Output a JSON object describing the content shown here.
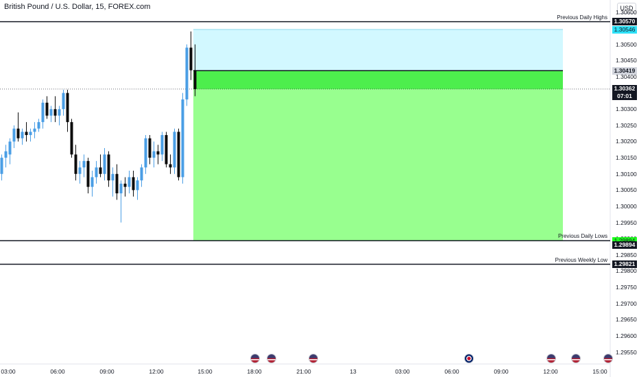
{
  "header": {
    "title": "British Pound / U.S. Dollar, 15, FOREX.com",
    "currency": "USD"
  },
  "chart_data": {
    "type": "candlestick",
    "title": "British Pound / U.S. Dollar, 15, FOREX.com",
    "ylim": [
      1.295,
      1.3065
    ],
    "y_ticks": [
      "1.30600",
      "1.30550",
      "1.30500",
      "1.30450",
      "1.30400",
      "1.30350",
      "1.30300",
      "1.30250",
      "1.30200",
      "1.30150",
      "1.30100",
      "1.30050",
      "1.30000",
      "1.29950",
      "1.29900",
      "1.29850",
      "1.29800",
      "1.29750",
      "1.29700",
      "1.29650",
      "1.29600",
      "1.29550"
    ],
    "x_ticks": [
      "03:00",
      "06:00",
      "09:00",
      "12:00",
      "15:00",
      "18:00",
      "21:00",
      "13",
      "03:00",
      "06:00",
      "09:00",
      "12:00",
      "15:00"
    ],
    "candles": [
      [
        1.301,
        1.3016,
        1.3008,
        1.3015
      ],
      [
        1.3015,
        1.3019,
        1.3012,
        1.3017
      ],
      [
        1.3016,
        1.3021,
        1.3013,
        1.302
      ],
      [
        1.302,
        1.3025,
        1.3018,
        1.3024
      ],
      [
        1.3024,
        1.3029,
        1.302,
        1.3021
      ],
      [
        1.3021,
        1.3024,
        1.3019,
        1.3023
      ],
      [
        1.3023,
        1.3026,
        1.302,
        1.3022
      ],
      [
        1.3022,
        1.3024,
        1.302,
        1.3023
      ],
      [
        1.3023,
        1.3026,
        1.3021,
        1.3024
      ],
      [
        1.3024,
        1.3027,
        1.3023,
        1.3026
      ],
      [
        1.3026,
        1.3033,
        1.3024,
        1.3032
      ],
      [
        1.3032,
        1.3034,
        1.3027,
        1.3028
      ],
      [
        1.3028,
        1.3031,
        1.3026,
        1.303
      ],
      [
        1.303,
        1.3034,
        1.3026,
        1.3028
      ],
      [
        1.3028,
        1.3031,
        1.3025,
        1.303
      ],
      [
        1.303,
        1.3036,
        1.3028,
        1.3035
      ],
      [
        1.3035,
        1.3036,
        1.3023,
        1.3026
      ],
      [
        1.3026,
        1.3027,
        1.3015,
        1.3016
      ],
      [
        1.3016,
        1.3019,
        1.3008,
        1.301
      ],
      [
        1.301,
        1.3014,
        1.3007,
        1.3012
      ],
      [
        1.3012,
        1.3016,
        1.3009,
        1.3014
      ],
      [
        1.3014,
        1.3015,
        1.3004,
        1.3006
      ],
      [
        1.3006,
        1.3011,
        1.3003,
        1.3009
      ],
      [
        1.3009,
        1.3014,
        1.3007,
        1.3012
      ],
      [
        1.3012,
        1.3016,
        1.3009,
        1.301
      ],
      [
        1.301,
        1.3018,
        1.3008,
        1.3016
      ],
      [
        1.3016,
        1.3017,
        1.3006,
        1.3008
      ],
      [
        1.3008,
        1.3012,
        1.3003,
        1.301
      ],
      [
        1.301,
        1.3013,
        1.3002,
        1.3004
      ],
      [
        1.3004,
        1.3008,
        1.2995,
        1.3007
      ],
      [
        1.3007,
        1.3009,
        1.3003,
        1.3006
      ],
      [
        1.3006,
        1.3011,
        1.3004,
        1.3009
      ],
      [
        1.3009,
        1.3011,
        1.3003,
        1.3005
      ],
      [
        1.3005,
        1.3009,
        1.3002,
        1.3008
      ],
      [
        1.3008,
        1.3013,
        1.3006,
        1.3012
      ],
      [
        1.3012,
        1.3022,
        1.301,
        1.3021
      ],
      [
        1.3021,
        1.3022,
        1.3013,
        1.3015
      ],
      [
        1.3015,
        1.302,
        1.3012,
        1.3017
      ],
      [
        1.3017,
        1.3019,
        1.3013,
        1.3016
      ],
      [
        1.3016,
        1.3023,
        1.3014,
        1.3022
      ],
      [
        1.3022,
        1.3023,
        1.3012,
        1.3013
      ],
      [
        1.3013,
        1.3016,
        1.301,
        1.3012
      ],
      [
        1.3012,
        1.3024,
        1.301,
        1.3023
      ],
      [
        1.3023,
        1.3024,
        1.3008,
        1.3009
      ],
      [
        1.3009,
        1.3035,
        1.3007,
        1.3033
      ],
      [
        1.3033,
        1.305,
        1.3031,
        1.3049
      ],
      [
        1.3049,
        1.3054,
        1.3039,
        1.3042
      ],
      [
        1.3042,
        1.305,
        1.3034,
        1.30362
      ]
    ],
    "colors": {
      "up": "#4a9ee5",
      "down": "#0c0c0c"
    },
    "position": {
      "entry": 1.30419,
      "target": 1.29894,
      "stop": 1.30546,
      "target_color": "#98ff8f",
      "stop_color": "#d2f8ff",
      "entry_zone_color": "#4dee4d"
    },
    "levels": [
      {
        "name": "Previous Daily Highs",
        "value": "1.30570",
        "y": 1.3057
      },
      {
        "name": "Previous Daily Lows",
        "value": "1.29894",
        "y": 1.29894
      },
      {
        "name": "Previous Weekly Low",
        "value": "1.29821",
        "y": 1.29821
      }
    ],
    "price_badges": [
      {
        "value": "1.30570",
        "y": 1.3057,
        "style": "black"
      },
      {
        "value": "1.30546",
        "y": 1.30546,
        "style": "cyan"
      },
      {
        "value": "1.30419",
        "y": 1.30419,
        "style": "gray"
      },
      {
        "value": "1.30362",
        "y": 1.30362,
        "style": "black"
      },
      {
        "value": "1.29894",
        "y": 1.29894,
        "style": "green"
      },
      {
        "value": "1.29894",
        "y": 1.29881,
        "style": "black"
      },
      {
        "value": "1.29821",
        "y": 1.29821,
        "style": "black"
      }
    ],
    "last_price": {
      "value": 1.30362,
      "countdown": "07:01"
    },
    "events": [
      "us",
      "us",
      "us",
      "uk",
      "us",
      "us",
      "us"
    ]
  }
}
